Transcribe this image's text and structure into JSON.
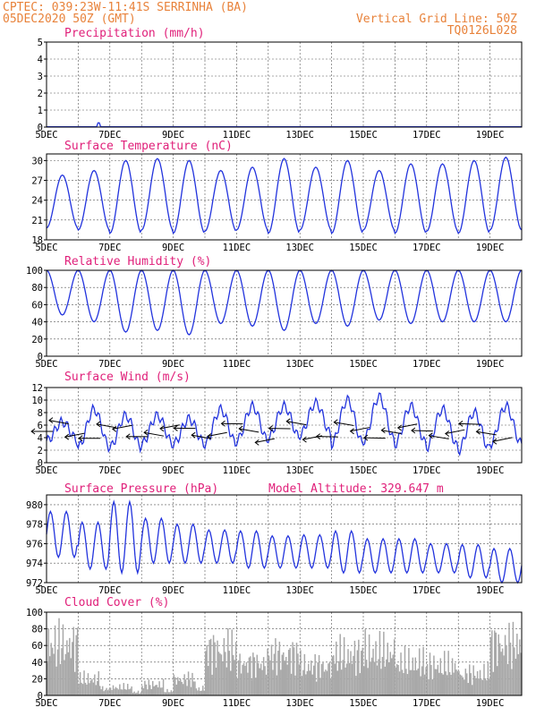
{
  "header": {
    "line1": "CPTEC:   039:23W-11:41S   SERRINHA (BA)",
    "line2": "05DEC2020 50Z (GMT)",
    "grid_note": "Vertical Grid Line: 50Z",
    "code": "TQ0126L028"
  },
  "colors": {
    "header": "#e8823a",
    "title": "#e0207a",
    "series": "#2233dd",
    "cloud": "#a8a8a8"
  },
  "chart_data": [
    {
      "type": "line",
      "title": "Precipitation (mm/h)",
      "ylim": [
        0,
        5
      ],
      "yticks": [
        0,
        1,
        2,
        3,
        4,
        5
      ],
      "xticks": [
        "5DEC",
        "7DEC",
        "9DEC",
        "11DEC",
        "13DEC",
        "15DEC",
        "17DEC",
        "19DEC"
      ],
      "x_range_days": [
        5,
        20
      ],
      "events": [
        {
          "day": 6.65,
          "value": 0.25
        }
      ]
    },
    {
      "type": "line",
      "title": "Surface Temperature (nC)",
      "ylim": [
        18,
        31
      ],
      "yticks": [
        18,
        21,
        24,
        27,
        30
      ],
      "xticks": [
        "5DEC",
        "7DEC",
        "9DEC",
        "11DEC",
        "13DEC",
        "15DEC",
        "17DEC",
        "19DEC"
      ],
      "daily_max": [
        27.8,
        28.5,
        30.0,
        30.3,
        30.0,
        28.5,
        29.0,
        30.3,
        29.0,
        30.0,
        28.5,
        29.5,
        29.5,
        30.0,
        30.5
      ],
      "daily_min": [
        19.8,
        19.5,
        19.0,
        19.5,
        19.0,
        19.3,
        19.5,
        19.0,
        19.5,
        19.0,
        19.5,
        19.0,
        19.3,
        19.0,
        19.5
      ]
    },
    {
      "type": "line",
      "title": "Relative Humidity (%)",
      "ylim": [
        0,
        100
      ],
      "yticks": [
        0,
        20,
        40,
        60,
        80,
        100
      ],
      "xticks": [
        "5DEC",
        "7DEC",
        "9DEC",
        "11DEC",
        "13DEC",
        "15DEC",
        "17DEC",
        "19DEC"
      ],
      "daily_max": [
        100,
        100,
        100,
        100,
        100,
        100,
        100,
        100,
        100,
        100,
        100,
        100,
        100,
        100,
        100
      ],
      "daily_min": [
        48,
        40,
        28,
        30,
        25,
        38,
        35,
        30,
        38,
        35,
        42,
        38,
        40,
        40,
        40
      ]
    },
    {
      "type": "line",
      "title": "Surface Wind (m/s)",
      "ylim": [
        0,
        12
      ],
      "yticks": [
        0,
        2,
        4,
        6,
        8,
        10,
        12
      ],
      "xticks": [
        "5DEC",
        "7DEC",
        "9DEC",
        "11DEC",
        "13DEC",
        "15DEC",
        "17DEC",
        "19DEC"
      ],
      "daily_max": [
        6.5,
        8.5,
        7.5,
        7.5,
        7.0,
        8.5,
        9.0,
        9.0,
        9.5,
        10.0,
        10.5,
        9.0,
        8.5,
        8.0,
        9.0
      ],
      "daily_min": [
        3.5,
        2.5,
        2.5,
        3.0,
        3.0,
        3.0,
        3.5,
        4.0,
        4.5,
        3.0,
        3.5,
        3.0,
        2.5,
        2.0,
        3.0
      ],
      "wind_arrows": "direction vectors from the east"
    },
    {
      "type": "line",
      "title": "Surface Pressure (hPa)",
      "annotation": "Model Altitude: 329.647  m",
      "ylim": [
        972,
        981
      ],
      "yticks": [
        972,
        974,
        976,
        978,
        980
      ],
      "xticks": [
        "5DEC",
        "7DEC",
        "9DEC",
        "11DEC",
        "13DEC",
        "15DEC",
        "17DEC",
        "19DEC"
      ],
      "daily_max": [
        979.3,
        978.2,
        980.3,
        978.6,
        978.0,
        977.4,
        977.3,
        976.8,
        976.9,
        977.3,
        976.5,
        976.5,
        976.0,
        975.9,
        975.5
      ],
      "daily_min": [
        974.6,
        973.4,
        973.0,
        974.0,
        974.0,
        974.0,
        973.5,
        973.5,
        973.5,
        973.0,
        973.0,
        973.0,
        973.0,
        972.5,
        972.0
      ]
    },
    {
      "type": "bar",
      "title": "Cloud Cover (%)",
      "ylim": [
        0,
        100
      ],
      "yticks": [
        0,
        20,
        40,
        60,
        80,
        100
      ],
      "xticks": [
        "5DEC",
        "7DEC",
        "9DEC",
        "11DEC",
        "13DEC",
        "15DEC",
        "17DEC",
        "19DEC"
      ],
      "daily_profile": [
        95,
        30,
        15,
        20,
        30,
        85,
        60,
        75,
        55,
        75,
        80,
        60,
        55,
        40,
        95
      ]
    }
  ]
}
